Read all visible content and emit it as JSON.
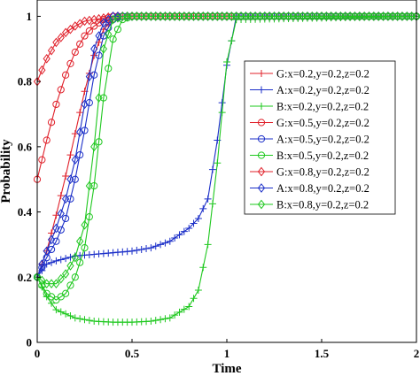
{
  "chart_data": {
    "type": "line",
    "xlabel": "Time",
    "ylabel": "Probability",
    "xlim": [
      0,
      2
    ],
    "ylim": [
      0,
      1.05
    ],
    "xticks": [
      0,
      0.5,
      1,
      1.5,
      2
    ],
    "xtick_labels": [
      "0",
      "0.5",
      "1",
      "1.5",
      "2"
    ],
    "yticks": [
      0,
      0.2,
      0.4,
      0.6,
      0.8,
      1
    ],
    "ytick_labels": [
      "0",
      "0.2",
      "0.4",
      "0.6",
      "0.8",
      "1"
    ],
    "grid": false,
    "legend_position": "center-right",
    "series": [
      {
        "name": "G:x=0.2,y=0.2,z=0.2",
        "color": "#e0202a",
        "marker": "plus",
        "x": [
          0,
          0.05,
          0.1,
          0.15,
          0.2,
          0.25,
          0.3,
          0.35,
          0.4,
          0.45,
          0.5,
          2
        ],
        "y": [
          0.2,
          0.28,
          0.39,
          0.51,
          0.64,
          0.77,
          0.88,
          0.96,
          0.99,
          1.0,
          1.0,
          1.0
        ]
      },
      {
        "name": "A:x=0.2,y=0.2,z=0.2",
        "color": "#1a2ec8",
        "marker": "plus",
        "x": [
          0,
          0.05,
          0.1,
          0.2,
          0.3,
          0.4,
          0.5,
          0.6,
          0.7,
          0.8,
          0.85,
          0.9,
          0.95,
          1.0,
          1.05,
          2
        ],
        "y": [
          0.2,
          0.24,
          0.25,
          0.265,
          0.27,
          0.275,
          0.28,
          0.29,
          0.31,
          0.35,
          0.38,
          0.44,
          0.62,
          0.85,
          1.0,
          1.0
        ]
      },
      {
        "name": "B:x=0.2,y=0.2,z=0.2",
        "color": "#1ec81e",
        "marker": "plus",
        "x": [
          0,
          0.05,
          0.1,
          0.2,
          0.3,
          0.4,
          0.5,
          0.6,
          0.7,
          0.8,
          0.85,
          0.9,
          0.95,
          1.0,
          1.05,
          2
        ],
        "y": [
          0.2,
          0.14,
          0.1,
          0.075,
          0.065,
          0.062,
          0.062,
          0.065,
          0.075,
          0.11,
          0.16,
          0.3,
          0.55,
          0.86,
          0.99,
          1.0
        ]
      },
      {
        "name": "G:x=0.5,y=0.2,z=0.2",
        "color": "#e0202a",
        "marker": "circle",
        "x": [
          0,
          0.05,
          0.1,
          0.15,
          0.2,
          0.25,
          0.3,
          0.35,
          0.4,
          2
        ],
        "y": [
          0.5,
          0.62,
          0.73,
          0.82,
          0.89,
          0.94,
          0.97,
          0.99,
          1.0,
          1.0
        ]
      },
      {
        "name": "A:x=0.5,y=0.2,z=0.2",
        "color": "#1a2ec8",
        "marker": "circle",
        "x": [
          0,
          0.05,
          0.1,
          0.15,
          0.2,
          0.25,
          0.3,
          0.35,
          0.4,
          0.45,
          2
        ],
        "y": [
          0.2,
          0.26,
          0.31,
          0.38,
          0.5,
          0.65,
          0.82,
          0.94,
          0.99,
          1.0,
          1.0
        ]
      },
      {
        "name": "B:x=0.5,y=0.2,z=0.2",
        "color": "#1ec81e",
        "marker": "circle",
        "x": [
          0,
          0.05,
          0.1,
          0.15,
          0.2,
          0.25,
          0.3,
          0.35,
          0.4,
          0.45,
          0.5,
          2
        ],
        "y": [
          0.2,
          0.15,
          0.13,
          0.15,
          0.2,
          0.29,
          0.48,
          0.75,
          0.93,
          0.99,
          1.0,
          1.0
        ]
      },
      {
        "name": "G:x=0.8,y=0.2,z=0.2",
        "color": "#e0202a",
        "marker": "diamond",
        "x": [
          0,
          0.05,
          0.1,
          0.15,
          0.2,
          0.25,
          0.3,
          0.35,
          0.4,
          2
        ],
        "y": [
          0.8,
          0.87,
          0.92,
          0.95,
          0.97,
          0.985,
          0.99,
          0.995,
          1.0,
          1.0
        ]
      },
      {
        "name": "A:x=0.8,y=0.2,z=0.2",
        "color": "#1a2ec8",
        "marker": "diamond",
        "x": [
          0,
          0.05,
          0.1,
          0.15,
          0.2,
          0.25,
          0.3,
          0.35,
          0.4,
          2
        ],
        "y": [
          0.2,
          0.28,
          0.35,
          0.44,
          0.56,
          0.73,
          0.9,
          0.98,
          1.0,
          1.0
        ]
      },
      {
        "name": "B:x=0.8,y=0.2,z=0.2",
        "color": "#1ec81e",
        "marker": "diamond",
        "x": [
          0,
          0.05,
          0.1,
          0.15,
          0.2,
          0.25,
          0.3,
          0.35,
          0.4,
          0.45,
          2
        ],
        "y": [
          0.2,
          0.18,
          0.18,
          0.21,
          0.26,
          0.36,
          0.6,
          0.9,
          0.99,
          1.0,
          1.0
        ]
      }
    ]
  }
}
